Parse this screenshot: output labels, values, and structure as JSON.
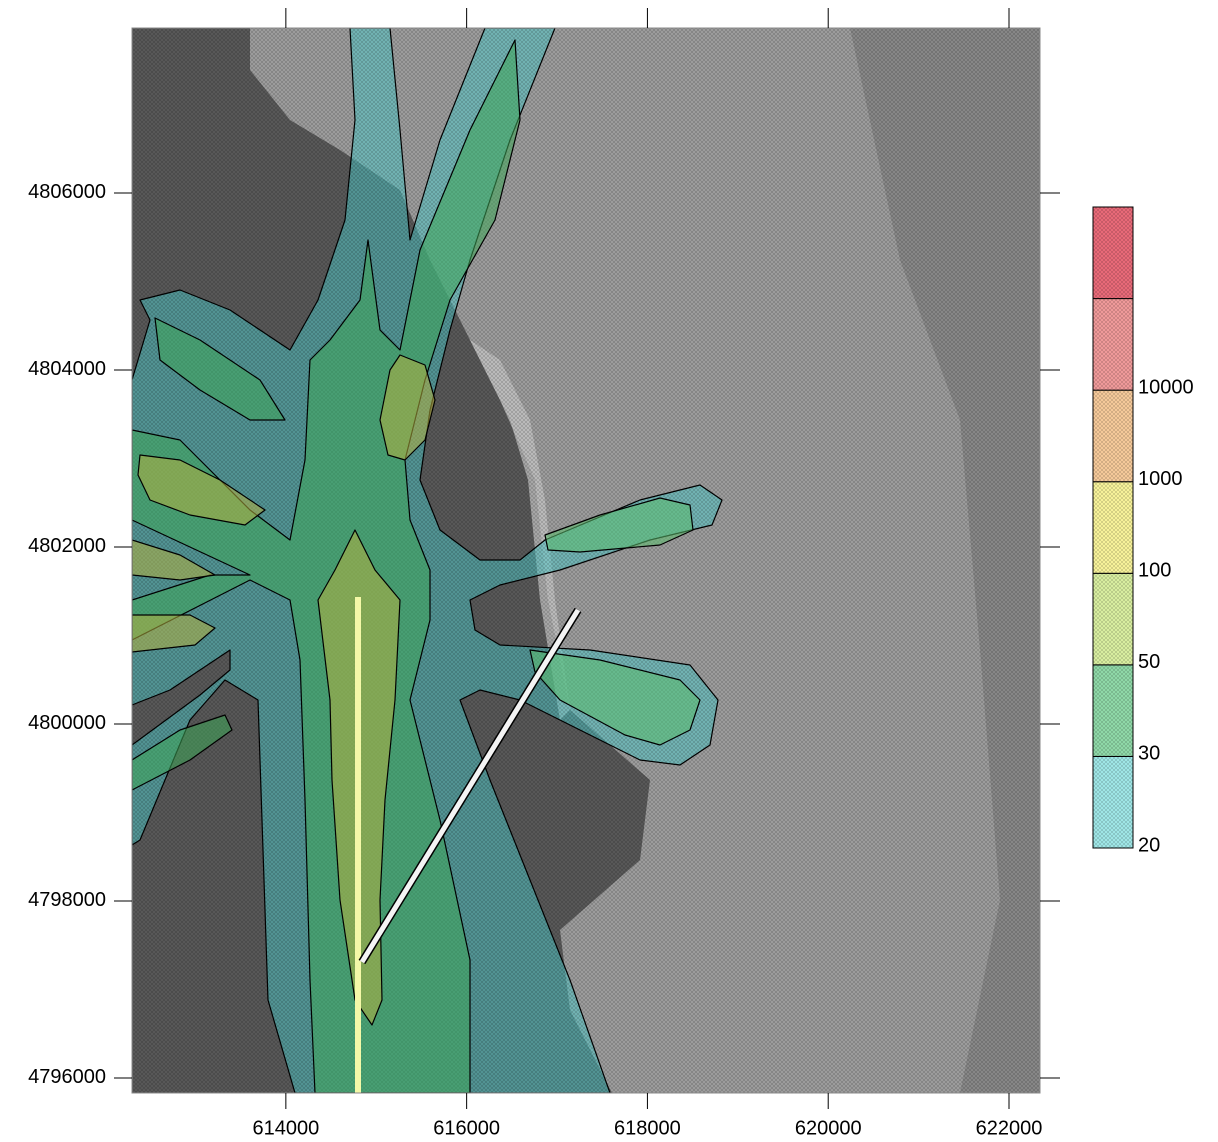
{
  "map": {
    "xlim": [
      612298,
      622343
    ],
    "xticks": [
      614000,
      616000,
      618000,
      620000,
      622000
    ],
    "ylim": [
      4795830,
      4807864
    ],
    "yticks": [
      4796000,
      4798000,
      4800000,
      4802000,
      4804000,
      4806000
    ],
    "legend": {
      "levels": [
        20,
        30,
        50,
        100,
        1000,
        10000
      ],
      "colors": [
        "#9fe6e6",
        "#8fd8a8",
        "#d8eea0",
        "#f7f29a",
        "#f5c99a",
        "#ef9a9a",
        "#e86a78"
      ]
    }
  }
}
